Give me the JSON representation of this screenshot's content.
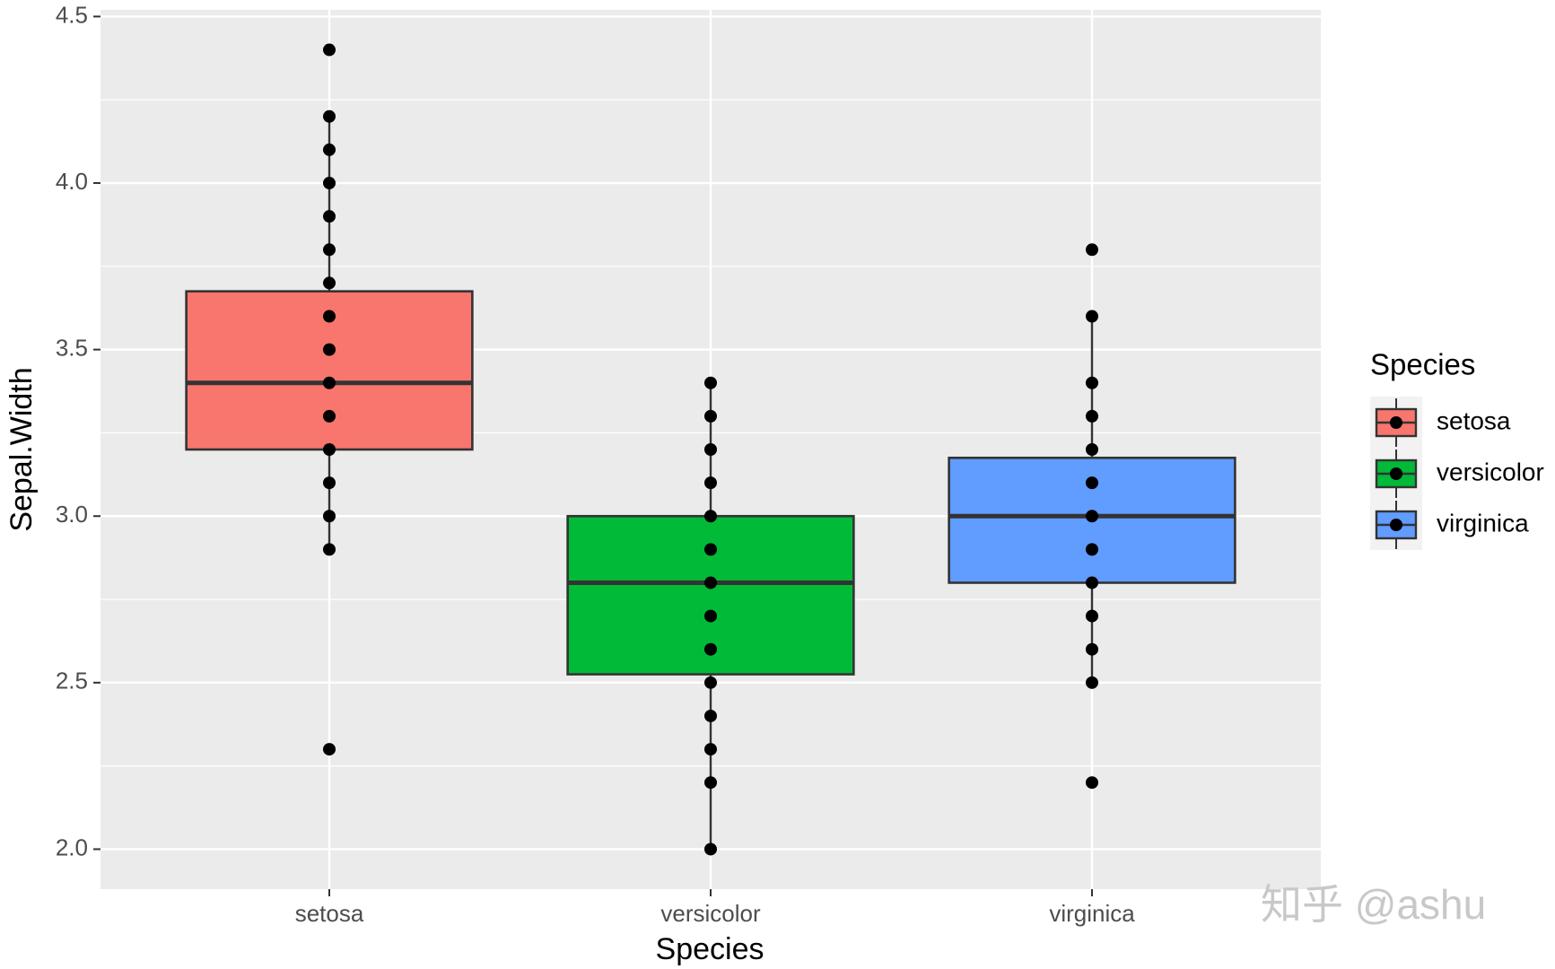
{
  "chart_data": {
    "type": "box",
    "x_label": "Species",
    "y_label": "Sepal.Width",
    "categories": [
      "setosa",
      "versicolor",
      "virginica"
    ],
    "legend_title": "Species",
    "legend_position": "right",
    "series": [
      {
        "name": "setosa",
        "color": "#F8766D",
        "whisker_low": 2.9,
        "q1": 3.2,
        "median": 3.4,
        "q3": 3.675,
        "whisker_high": 4.2,
        "points": [
          2.3,
          2.9,
          3.0,
          3.1,
          3.2,
          3.3,
          3.4,
          3.5,
          3.6,
          3.7,
          3.8,
          3.9,
          4.0,
          4.1,
          4.2,
          4.4
        ]
      },
      {
        "name": "versicolor",
        "color": "#00BA38",
        "whisker_low": 2.0,
        "q1": 2.525,
        "median": 2.8,
        "q3": 3.0,
        "whisker_high": 3.4,
        "points": [
          2.0,
          2.2,
          2.3,
          2.4,
          2.5,
          2.6,
          2.7,
          2.8,
          2.9,
          3.0,
          3.1,
          3.2,
          3.3,
          3.4
        ]
      },
      {
        "name": "virginica",
        "color": "#619CFF",
        "whisker_low": 2.5,
        "q1": 2.8,
        "median": 3.0,
        "q3": 3.175,
        "whisker_high": 3.6,
        "points": [
          2.2,
          2.5,
          2.6,
          2.7,
          2.8,
          2.9,
          3.0,
          3.1,
          3.2,
          3.3,
          3.4,
          3.6,
          3.8
        ]
      }
    ],
    "ylim": [
      1.88,
      4.52
    ],
    "yticks": [
      {
        "value": 2,
        "label": "2.0"
      },
      2.5,
      {
        "value": 3,
        "label": "3.0"
      },
      3.5,
      {
        "value": 4,
        "label": "4.0"
      },
      4.5
    ],
    "minor_yticks": [
      2.25,
      2.75,
      3.25,
      3.75,
      4.25
    ],
    "grid": true,
    "watermark": "知乎 @ashu"
  }
}
